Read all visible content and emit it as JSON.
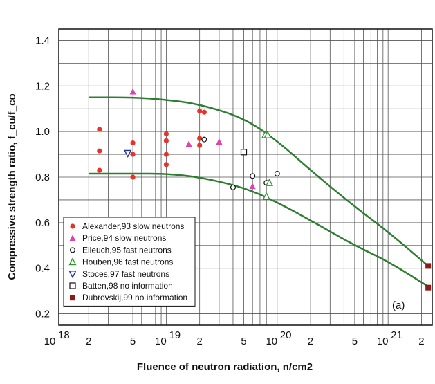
{
  "chart_data": {
    "type": "scatter",
    "title": "",
    "ylabel": "Compressive strength ratio, f_cu/f_co",
    "xlabel": "Fluence of neutron radiation, n/cm2",
    "xscale": "log",
    "xlim": [
      1e+18,
      2.5e+21
    ],
    "ylim": [
      0.15,
      1.45
    ],
    "grid": true,
    "yticks": [
      0.2,
      0.4,
      0.6,
      0.8,
      1.0,
      1.2,
      1.4
    ],
    "ytick_labels": [
      "0.2",
      "0.4",
      "0.6",
      "0.8",
      "1.0",
      "1.2",
      "1.4"
    ],
    "xticks": [
      {
        "value": 1e+18,
        "label": "10",
        "exp": "18"
      },
      {
        "value": 2e+18,
        "label": "2",
        "exp": ""
      },
      {
        "value": 5e+18,
        "label": "5",
        "exp": ""
      },
      {
        "value": 1e+19,
        "label": "10",
        "exp": "19"
      },
      {
        "value": 2e+19,
        "label": "2",
        "exp": ""
      },
      {
        "value": 5e+19,
        "label": "5",
        "exp": ""
      },
      {
        "value": 1e+20,
        "label": "10",
        "exp": "20"
      },
      {
        "value": 2e+20,
        "label": "2",
        "exp": ""
      },
      {
        "value": 5e+20,
        "label": "5",
        "exp": ""
      },
      {
        "value": 1e+21,
        "label": "10",
        "exp": "21"
      },
      {
        "value": 2e+21,
        "label": "2",
        "exp": ""
      }
    ],
    "annotation": "(a)",
    "legend_position": "bottom-left",
    "series": [
      {
        "name": "Alexander,93 slow neutrons",
        "marker": "circle-filled",
        "color": "#e8332b",
        "points": [
          [
            2.5e+18,
            1.01
          ],
          [
            2.5e+18,
            0.915
          ],
          [
            2.5e+18,
            0.83
          ],
          [
            5e+18,
            0.95
          ],
          [
            5e+18,
            0.9
          ],
          [
            5e+18,
            0.8
          ],
          [
            1e+19,
            0.99
          ],
          [
            1e+19,
            0.96
          ],
          [
            1e+19,
            0.9
          ],
          [
            1e+19,
            0.855
          ],
          [
            2e+19,
            1.09
          ],
          [
            2.2e+19,
            1.085
          ],
          [
            2e+19,
            0.97
          ],
          [
            2e+19,
            0.94
          ]
        ]
      },
      {
        "name": "Price,94 slow neutrons",
        "marker": "triangle-filled",
        "color": "#e040b0",
        "points": [
          [
            5e+18,
            1.175
          ],
          [
            1.6e+19,
            0.945
          ],
          [
            3e+19,
            0.955
          ],
          [
            6e+19,
            0.76
          ]
        ]
      },
      {
        "name": "Elleuch,95 fast neutrons",
        "marker": "circle-open",
        "color": "#111111",
        "points": [
          [
            2.2e+19,
            0.965
          ],
          [
            4e+19,
            0.755
          ],
          [
            6e+19,
            0.805
          ],
          [
            8e+19,
            0.775
          ],
          [
            1e+20,
            0.815
          ]
        ]
      },
      {
        "name": "Houben,96 fast neutrons",
        "marker": "triangle-open",
        "color": "#2a9a2a",
        "points": [
          [
            7.8e+19,
            0.985
          ],
          [
            8.2e+19,
            0.985
          ],
          [
            8.5e+19,
            0.775
          ],
          [
            8e+19,
            0.715
          ]
        ]
      },
      {
        "name": "Stoces,97 fast neutrons",
        "marker": "triangle-down-open",
        "color": "#1f2f9a",
        "points": [
          [
            4.5e+18,
            0.905
          ]
        ]
      },
      {
        "name": "Batten,98 no information",
        "marker": "square-open",
        "color": "#111111",
        "points": [
          [
            5e+19,
            0.91
          ]
        ]
      },
      {
        "name": "Dubrovskij,99 no information",
        "marker": "square-filled",
        "color": "#8b1a1a",
        "points": [
          [
            2.3e+21,
            0.41
          ],
          [
            2.3e+21,
            0.315
          ]
        ]
      }
    ],
    "bound_lines": [
      {
        "color": "#2e7d32",
        "points": [
          [
            2e+18,
            1.15
          ],
          [
            5e+18,
            1.15
          ],
          [
            1e+19,
            1.14
          ],
          [
            2e+19,
            1.12
          ],
          [
            5e+19,
            1.06
          ],
          [
            1e+20,
            0.96
          ],
          [
            2e+20,
            0.83
          ],
          [
            5e+20,
            0.67
          ],
          [
            1e+21,
            0.56
          ],
          [
            2.3e+21,
            0.41
          ]
        ]
      },
      {
        "color": "#2e7d32",
        "points": [
          [
            2e+18,
            0.815
          ],
          [
            5e+18,
            0.815
          ],
          [
            1e+19,
            0.815
          ],
          [
            2e+19,
            0.8
          ],
          [
            5e+19,
            0.755
          ],
          [
            1e+20,
            0.69
          ],
          [
            2e+20,
            0.61
          ],
          [
            5e+20,
            0.5
          ],
          [
            1e+21,
            0.43
          ],
          [
            2.3e+21,
            0.32
          ]
        ]
      }
    ]
  }
}
